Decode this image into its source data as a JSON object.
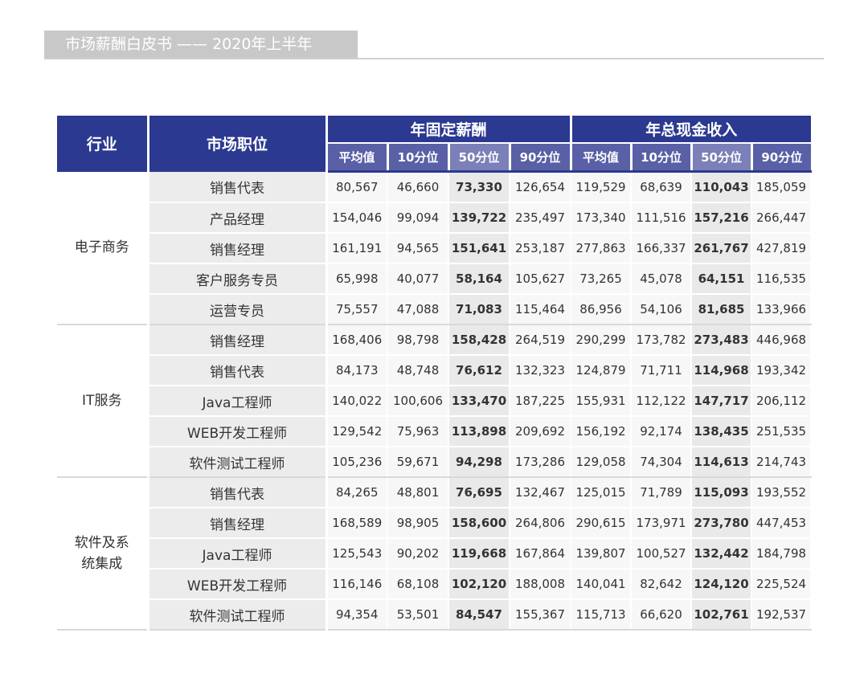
{
  "header": {
    "title": "市场薪酬白皮书 —— 2020年上半年"
  },
  "table": {
    "col_industry": "行业",
    "col_position": "市场职位",
    "group_fixed": "年固定薪酬",
    "group_total": "年总现金收入",
    "sub_headers": [
      "平均值",
      "10分位",
      "50分位",
      "90分位",
      "平均值",
      "10分位",
      "50分位",
      "90分位"
    ],
    "groups": [
      {
        "industry": "电子商务",
        "rows": [
          {
            "position": "销售代表",
            "values": [
              "80,567",
              "46,660",
              "73,330",
              "126,654",
              "119,529",
              "68,639",
              "110,043",
              "185,059"
            ]
          },
          {
            "position": "产品经理",
            "values": [
              "154,046",
              "99,094",
              "139,722",
              "235,497",
              "173,340",
              "111,516",
              "157,216",
              "266,447"
            ]
          },
          {
            "position": "销售经理",
            "values": [
              "161,191",
              "94,565",
              "151,641",
              "253,187",
              "277,863",
              "166,337",
              "261,767",
              "427,819"
            ]
          },
          {
            "position": "客户服务专员",
            "values": [
              "65,998",
              "40,077",
              "58,164",
              "105,627",
              "73,265",
              "45,078",
              "64,151",
              "116,535"
            ]
          },
          {
            "position": "运营专员",
            "values": [
              "75,557",
              "47,088",
              "71,083",
              "115,464",
              "86,956",
              "54,106",
              "81,685",
              "133,966"
            ]
          }
        ]
      },
      {
        "industry": "IT服务",
        "rows": [
          {
            "position": "销售经理",
            "values": [
              "168,406",
              "98,798",
              "158,428",
              "264,519",
              "290,299",
              "173,782",
              "273,483",
              "446,968"
            ]
          },
          {
            "position": "销售代表",
            "values": [
              "84,173",
              "48,748",
              "76,612",
              "132,323",
              "124,879",
              "71,711",
              "114,968",
              "193,342"
            ]
          },
          {
            "position": "Java工程师",
            "values": [
              "140,022",
              "100,606",
              "133,470",
              "187,225",
              "155,931",
              "112,122",
              "147,717",
              "206,112"
            ]
          },
          {
            "position": "WEB开发工程师",
            "values": [
              "129,542",
              "75,963",
              "113,898",
              "209,692",
              "156,192",
              "92,174",
              "138,435",
              "251,535"
            ]
          },
          {
            "position": "软件测试工程师",
            "values": [
              "105,236",
              "59,671",
              "94,298",
              "173,286",
              "129,058",
              "74,304",
              "114,613",
              "214,743"
            ]
          }
        ]
      },
      {
        "industry": "软件及系统集成",
        "industry_lines": [
          "软件及系",
          "统集成"
        ],
        "rows": [
          {
            "position": "销售代表",
            "values": [
              "84,265",
              "48,801",
              "76,695",
              "132,467",
              "125,015",
              "71,789",
              "115,093",
              "193,552"
            ]
          },
          {
            "position": "销售经理",
            "values": [
              "168,589",
              "98,905",
              "158,600",
              "264,806",
              "290,615",
              "173,971",
              "273,780",
              "447,453"
            ]
          },
          {
            "position": "Java工程师",
            "values": [
              "125,543",
              "90,202",
              "119,668",
              "167,864",
              "139,807",
              "100,527",
              "132,442",
              "184,798"
            ]
          },
          {
            "position": "WEB开发工程师",
            "values": [
              "116,146",
              "68,108",
              "102,120",
              "188,008",
              "140,041",
              "82,642",
              "124,120",
              "225,524"
            ]
          },
          {
            "position": "软件测试工程师",
            "values": [
              "94,354",
              "53,501",
              "84,547",
              "155,367",
              "115,713",
              "66,620",
              "102,761",
              "192,537"
            ]
          }
        ]
      }
    ]
  }
}
